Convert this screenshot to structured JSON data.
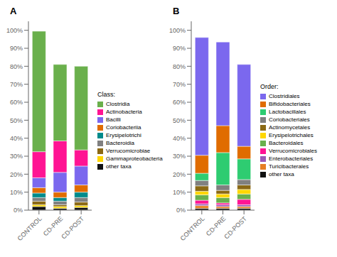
{
  "chart_data": [
    {
      "type": "bar",
      "title": "A",
      "legend_title": "Class:",
      "stacked": true,
      "grid": false,
      "legend": "right",
      "categories": [
        "CONTROL",
        "CD-PRE",
        "CD-POST"
      ],
      "series": [
        {
          "name": "other taxa",
          "color": "#111111",
          "values": [
            0.02,
            0.01,
            0.015
          ]
        },
        {
          "name": "Gammaproteobacteria",
          "color": "#ffd700",
          "values": [
            0.01,
            0.01,
            0.01
          ]
        },
        {
          "name": "Verrucomicrobiae",
          "color": "#8b6914",
          "values": [
            0.02,
            0.01,
            0.02
          ]
        },
        {
          "name": "Bacteroidia",
          "color": "#808080",
          "values": [
            0.02,
            0.02,
            0.025
          ]
        },
        {
          "name": "Erysipelotrichi",
          "color": "#008b8b",
          "values": [
            0.025,
            0.02,
            0.03
          ]
        },
        {
          "name": "Coriobacteriia",
          "color": "#e06c00",
          "values": [
            0.03,
            0.03,
            0.04
          ]
        },
        {
          "name": "Bacilli",
          "color": "#7b68ee",
          "values": [
            0.055,
            0.11,
            0.105
          ]
        },
        {
          "name": "Actinobacteria",
          "color": "#ff1493",
          "values": [
            0.145,
            0.175,
            0.09
          ]
        },
        {
          "name": "Clostridia",
          "color": "#6ab04c",
          "values": [
            0.67,
            0.425,
            0.465
          ]
        }
      ],
      "ylim": [
        0,
        1.05
      ],
      "yticks": [
        {
          "value": 0,
          "label": "0%"
        },
        {
          "value": 0.1,
          "label": "10%"
        },
        {
          "value": 0.2,
          "label": "20%"
        },
        {
          "value": 0.3,
          "label": "30%"
        },
        {
          "value": 0.4,
          "label": "40%"
        },
        {
          "value": 0.5,
          "label": "50%"
        },
        {
          "value": 0.6,
          "label": "60%"
        },
        {
          "value": 0.7,
          "label": "70%"
        },
        {
          "value": 0.8,
          "label": "80%"
        },
        {
          "value": 0.9,
          "label": "90%"
        },
        {
          "value": 1.0,
          "label": "100%"
        }
      ]
    },
    {
      "type": "bar",
      "title": "B",
      "legend_title": "Order:",
      "stacked": true,
      "grid": false,
      "legend": "right",
      "categories": [
        "CONTROL",
        "CD-PRE",
        "CD-POST"
      ],
      "series": [
        {
          "name": "other taxa",
          "color": "#111111",
          "values": [
            0.01,
            0.01,
            0.01
          ]
        },
        {
          "name": "Turicibacterales",
          "color": "#e67e22",
          "values": [
            0.015,
            0.01,
            0.01
          ]
        },
        {
          "name": "Enterobacteriales",
          "color": "#9b59b6",
          "values": [
            0.01,
            0.01,
            0.01
          ]
        },
        {
          "name": "Verrucomicrobiales",
          "color": "#ff1493",
          "values": [
            0.02,
            0.01,
            0.03
          ]
        },
        {
          "name": "Bacteroidales",
          "color": "#6ab04c",
          "values": [
            0.03,
            0.03,
            0.03
          ]
        },
        {
          "name": "Erysipelotrichales",
          "color": "#ffd700",
          "values": [
            0.02,
            0.02,
            0.025
          ]
        },
        {
          "name": "Actinomycetales",
          "color": "#8b6914",
          "values": [
            0.03,
            0.02,
            0.025
          ]
        },
        {
          "name": "Coriobacteriales",
          "color": "#808080",
          "values": [
            0.03,
            0.03,
            0.03
          ]
        },
        {
          "name": "Lactobacillales",
          "color": "#2ecc71",
          "values": [
            0.04,
            0.18,
            0.115
          ]
        },
        {
          "name": "Bifidobacteriales",
          "color": "#e06c00",
          "values": [
            0.1,
            0.15,
            0.07
          ]
        },
        {
          "name": "Clostridiales",
          "color": "#7b68ee",
          "values": [
            0.655,
            0.465,
            0.455
          ]
        }
      ],
      "ylim": [
        0,
        1.05
      ],
      "yticks": [
        {
          "value": 0,
          "label": "0%"
        },
        {
          "value": 0.1,
          "label": "10%"
        },
        {
          "value": 0.2,
          "label": "20%"
        },
        {
          "value": 0.3,
          "label": "30%"
        },
        {
          "value": 0.4,
          "label": "40%"
        },
        {
          "value": 0.5,
          "label": "50%"
        },
        {
          "value": 0.6,
          "label": "60%"
        },
        {
          "value": 0.7,
          "label": "70%"
        },
        {
          "value": 0.8,
          "label": "80%"
        },
        {
          "value": 0.9,
          "label": "90%"
        },
        {
          "value": 1.0,
          "label": "100%"
        }
      ]
    }
  ]
}
